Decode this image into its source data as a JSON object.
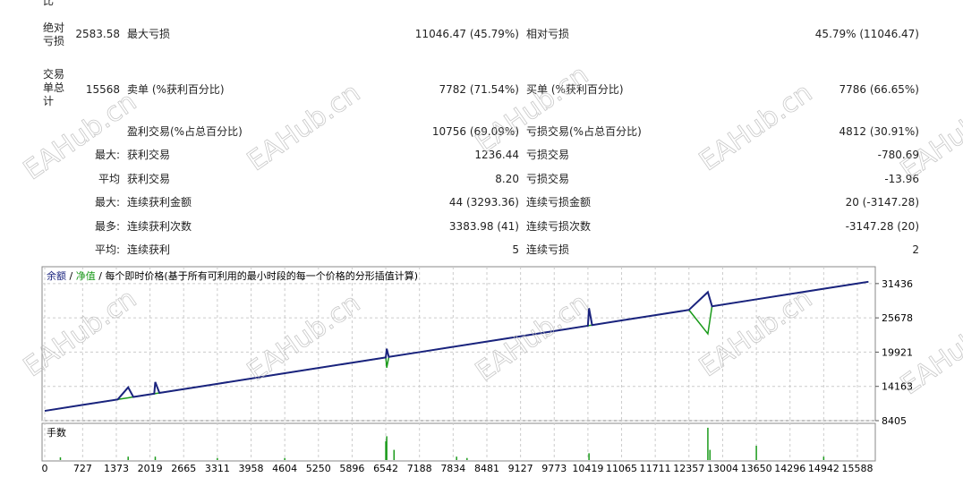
{
  "header": {
    "partial_label": "比"
  },
  "stats": {
    "rows": [
      {
        "label": "绝对\n亏损",
        "total": "2583.58",
        "k1": "最大亏损",
        "v1": "11046.47 (45.79%)",
        "k2": "相对亏损",
        "v2": "45.79% (11046.47)"
      },
      {
        "label": "交易\n单总\n计",
        "total": "15568",
        "k1": "卖单 (%获利百分比)",
        "v1": "7782 (71.54%)",
        "k2": "买单 (%获利百分比)",
        "v2": "7786 (66.65%)"
      },
      {
        "k1": "盈利交易(%占总百分比)",
        "v1": "10756 (69.09%)",
        "k2": "亏损交易(%占总百分比)",
        "v2": "4812 (30.91%)"
      },
      {
        "prefix": "最大:",
        "k1": "获利交易",
        "v1": "1236.44",
        "k2": "亏损交易",
        "v2": "-780.69"
      },
      {
        "prefix": "平均",
        "k1": "获利交易",
        "v1": "8.20",
        "k2": "亏损交易",
        "v2": "-13.96"
      },
      {
        "prefix": "最大:",
        "k1": "连续获利金额",
        "v1": "44 (3293.36)",
        "k2": "连续亏损金额",
        "v2": "20 (-3147.28)"
      },
      {
        "prefix": "最多:",
        "k1": "连续获利次数",
        "v1": "3383.98 (41)",
        "k2": "连续亏损次数",
        "v2": "-3147.28 (20)"
      },
      {
        "prefix": "平均:",
        "k1": "连续获利",
        "v1": "5",
        "k2": "连续亏损",
        "v2": "2"
      }
    ]
  },
  "watermark": "EAHub.cn",
  "chart_data": {
    "type": "line",
    "legend_separator": "/",
    "method_note": "每个即时价格(基于所有可利用的最小时段的每一个价格的分形插值计算)",
    "x": [
      0,
      700,
      1400,
      1600,
      1700,
      2100,
      2120,
      2200,
      3311,
      4604,
      5896,
      6542,
      6560,
      6600,
      7188,
      7834,
      8481,
      9127,
      9773,
      10419,
      10440,
      10500,
      11065,
      11711,
      12357,
      12720,
      12800,
      13650,
      14296,
      14942,
      15588,
      15800
    ],
    "series": [
      {
        "name": "净值",
        "color": "#1a9a1a",
        "values": [
          10050,
          11011,
          11972,
          12247,
          12384,
          12933,
          12960,
          13071,
          14596,
          16371,
          18145,
          19032,
          17300,
          19112,
          19919,
          20806,
          21694,
          22581,
          23468,
          24355,
          24383,
          24467,
          25242,
          26129,
          27016,
          23000,
          27624,
          28791,
          29678,
          30565,
          31452,
          31743
        ]
      },
      {
        "name": "余额",
        "color": "#1a237e",
        "values": [
          10050,
          11011,
          11972,
          14000,
          12384,
          12933,
          14900,
          13071,
          14596,
          16371,
          18145,
          19032,
          20500,
          19112,
          19919,
          20806,
          21694,
          22581,
          23468,
          24355,
          27300,
          24467,
          25242,
          26129,
          27016,
          30000,
          27624,
          28791,
          29678,
          30565,
          31452,
          31743
        ]
      }
    ],
    "xlim": [
      0,
      15966
    ],
    "xticks": [
      0,
      727,
      1373,
      2019,
      2665,
      3311,
      3958,
      4604,
      5250,
      5896,
      6542,
      7188,
      7834,
      8481,
      9127,
      9773,
      10419,
      11065,
      11711,
      12357,
      13004,
      13650,
      14296,
      14942,
      15588
    ],
    "ylim": [
      8405,
      34270
    ],
    "yticks": [
      8405,
      14163,
      19921,
      25678,
      31436
    ],
    "grid": true,
    "volume": {
      "label": "手数",
      "color": "#1a9a1a",
      "x": [
        300,
        1600,
        2120,
        3311,
        4604,
        6542,
        6560,
        6700,
        7900,
        8100,
        10440,
        12720,
        12760,
        13650,
        14942
      ],
      "values": [
        0.08,
        0.1,
        0.1,
        0.06,
        0.06,
        0.55,
        0.7,
        0.3,
        0.1,
        0.06,
        0.2,
        0.95,
        0.3,
        0.42,
        0.1
      ],
      "ylim": [
        0,
        1
      ]
    }
  }
}
